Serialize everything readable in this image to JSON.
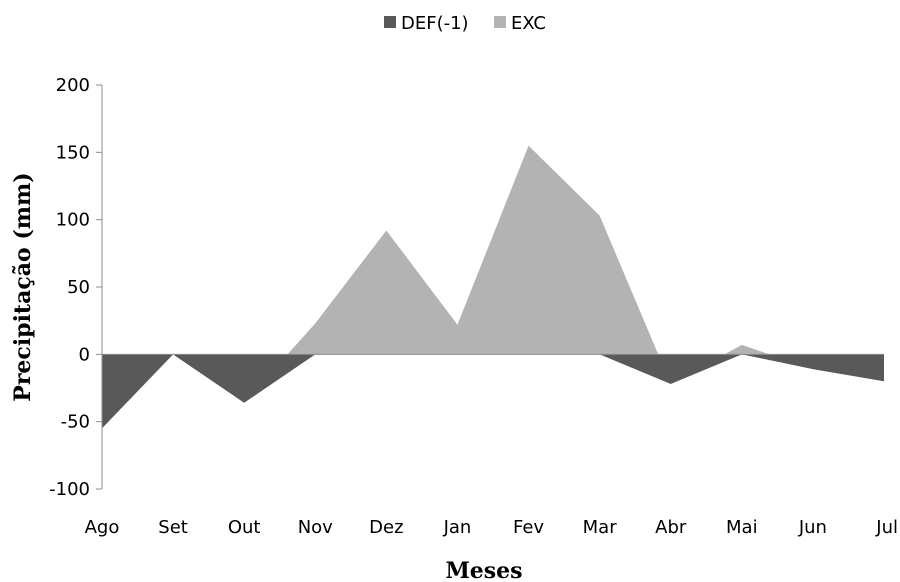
{
  "chart_data": {
    "type": "area",
    "title": "",
    "xlabel": "Meses",
    "ylabel": "Precipitação (mm)",
    "categories": [
      "Ago",
      "Set",
      "Out",
      "Nov",
      "Dez",
      "Jan",
      "Fev",
      "Mar",
      "Abr",
      "Mai",
      "Jun",
      "Jul"
    ],
    "ylim": [
      -100,
      200
    ],
    "yticks": [
      -100,
      -50,
      0,
      50,
      100,
      150,
      200
    ],
    "legend_position": "top-center",
    "grid": false,
    "series": [
      {
        "name": "DEF(-1)",
        "color": "#595959",
        "values": [
          -55,
          0,
          -36,
          0,
          0,
          0,
          0,
          0,
          -22,
          0,
          -11,
          -20
        ]
      },
      {
        "name": "EXC",
        "color": "#b3b3b3",
        "values": [
          0,
          0,
          -36,
          23,
          92,
          22,
          155,
          103,
          -22,
          7,
          -11,
          -20
        ]
      }
    ]
  }
}
